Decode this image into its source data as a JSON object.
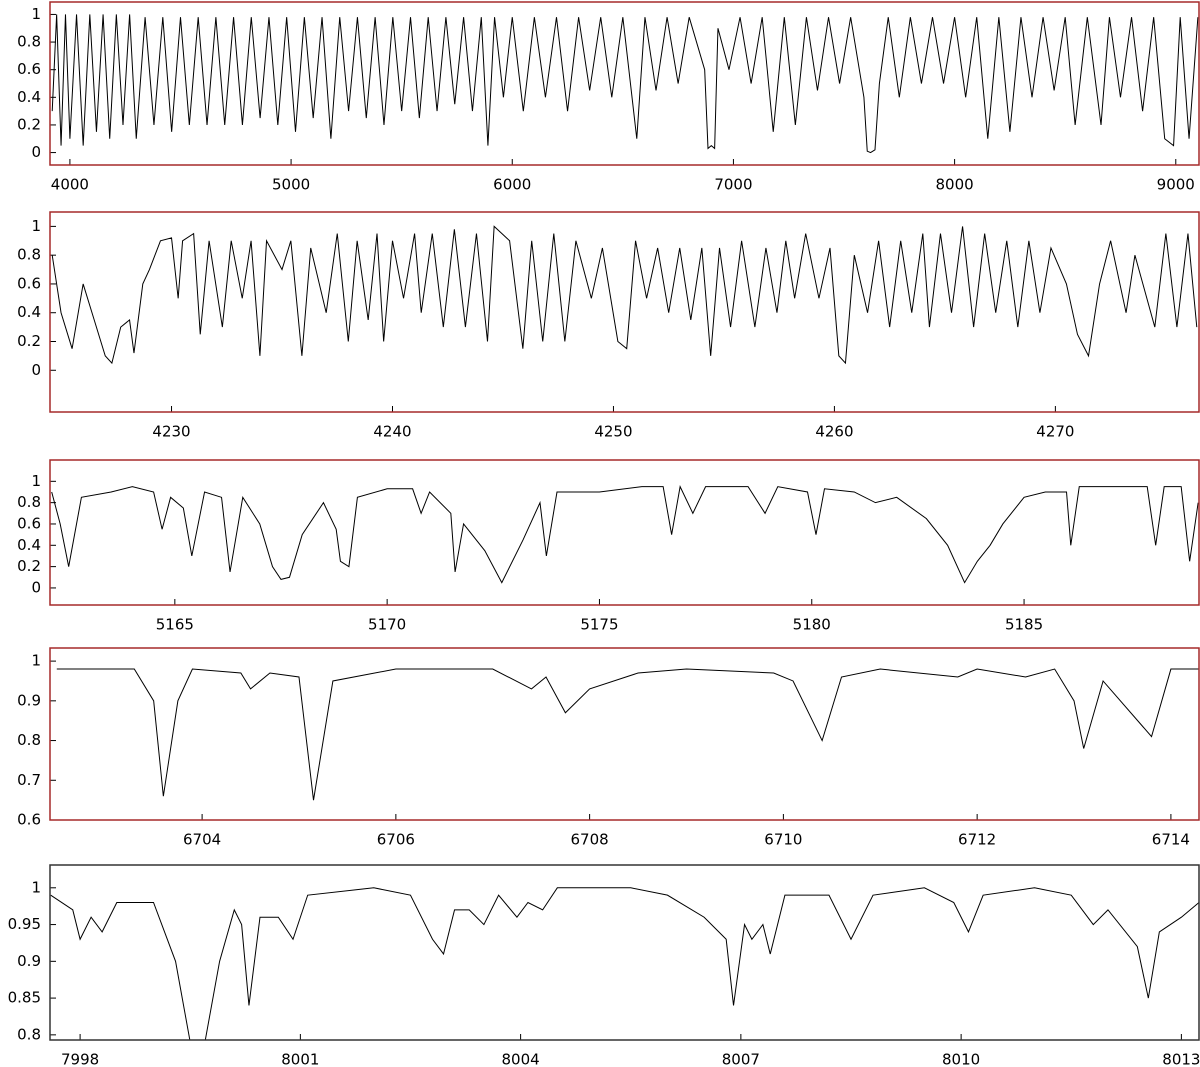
{
  "chart_data": [
    {
      "type": "line",
      "color": "#000000",
      "frame_color": "#a52a2a",
      "xlim": [
        3910,
        9105
      ],
      "ylim": [
        -0.09,
        1.09
      ],
      "xticks": [
        4000,
        5000,
        6000,
        7000,
        8000,
        9000
      ],
      "yticks": [
        0,
        0.2,
        0.4,
        0.6,
        0.8,
        1
      ],
      "x": [
        3920,
        3940,
        3960,
        3980,
        4000,
        4030,
        4060,
        4090,
        4120,
        4150,
        4180,
        4210,
        4240,
        4270,
        4300,
        4340,
        4380,
        4420,
        4460,
        4500,
        4540,
        4580,
        4620,
        4660,
        4700,
        4740,
        4780,
        4820,
        4860,
        4900,
        4940,
        4980,
        5020,
        5060,
        5100,
        5140,
        5180,
        5220,
        5260,
        5300,
        5340,
        5380,
        5420,
        5460,
        5500,
        5540,
        5580,
        5620,
        5660,
        5700,
        5740,
        5780,
        5820,
        5860,
        5890,
        5920,
        5960,
        6000,
        6050,
        6100,
        6150,
        6200,
        6250,
        6300,
        6350,
        6400,
        6450,
        6500,
        6563,
        6600,
        6650,
        6700,
        6750,
        6800,
        6870,
        6885,
        6900,
        6915,
        6930,
        6980,
        7030,
        7080,
        7130,
        7180,
        7230,
        7280,
        7330,
        7380,
        7430,
        7480,
        7530,
        7590,
        7605,
        7620,
        7640,
        7660,
        7700,
        7750,
        7800,
        7850,
        7900,
        7950,
        8000,
        8050,
        8100,
        8150,
        8200,
        8250,
        8300,
        8350,
        8400,
        8450,
        8500,
        8545,
        8600,
        8662,
        8700,
        8750,
        8800,
        8850,
        8900,
        8950,
        8990,
        9020,
        9060,
        9100
      ],
      "values": [
        0.3,
        1,
        0.05,
        1,
        0.1,
        1,
        0.05,
        1,
        0.15,
        1,
        0.1,
        1,
        0.2,
        1,
        0.1,
        0.98,
        0.2,
        0.98,
        0.15,
        0.98,
        0.2,
        0.98,
        0.2,
        0.98,
        0.2,
        0.98,
        0.2,
        0.98,
        0.25,
        0.98,
        0.2,
        0.98,
        0.15,
        0.98,
        0.25,
        0.98,
        0.1,
        0.98,
        0.3,
        0.98,
        0.25,
        0.98,
        0.2,
        0.98,
        0.3,
        0.98,
        0.25,
        0.98,
        0.3,
        0.98,
        0.35,
        0.98,
        0.3,
        0.98,
        0.05,
        0.98,
        0.4,
        0.98,
        0.3,
        0.98,
        0.4,
        0.98,
        0.3,
        0.98,
        0.45,
        0.98,
        0.4,
        0.98,
        0.1,
        0.98,
        0.45,
        0.98,
        0.5,
        0.98,
        0.6,
        0.03,
        0.05,
        0.03,
        0.9,
        0.6,
        0.98,
        0.5,
        0.98,
        0.15,
        0.98,
        0.2,
        0.98,
        0.45,
        0.98,
        0.5,
        0.98,
        0.4,
        0.01,
        0,
        0.02,
        0.5,
        0.98,
        0.4,
        0.98,
        0.5,
        0.98,
        0.5,
        0.98,
        0.4,
        0.98,
        0.1,
        0.98,
        0.15,
        0.98,
        0.4,
        0.98,
        0.45,
        0.98,
        0.2,
        0.98,
        0.2,
        0.98,
        0.4,
        0.98,
        0.3,
        0.98,
        0.1,
        0.05,
        0.98,
        0.1,
        0.98
      ]
    },
    {
      "type": "line",
      "color": "#000000",
      "frame_color": "#a52a2a",
      "xlim": [
        4224.5,
        4276.5
      ],
      "ylim": [
        -0.29,
        1.1
      ],
      "xticks": [
        4230,
        4240,
        4250,
        4260,
        4270
      ],
      "yticks": [
        0,
        0.2,
        0.4,
        0.6,
        0.8,
        1
      ],
      "x": [
        4224.6,
        4225,
        4225.5,
        4226,
        4226.5,
        4227,
        4227.3,
        4227.7,
        4228.1,
        4228.3,
        4228.7,
        4229,
        4229.5,
        4230,
        4230.3,
        4230.5,
        4231,
        4231.3,
        4231.7,
        4232.3,
        4232.7,
        4233.2,
        4233.6,
        4234,
        4234.3,
        4235,
        4235.4,
        4235.9,
        4236.3,
        4237,
        4237.5,
        4238,
        4238.4,
        4238.9,
        4239.3,
        4239.6,
        4240,
        4240.5,
        4241,
        4241.3,
        4241.8,
        4242.3,
        4242.8,
        4243.3,
        4243.8,
        4244.3,
        4244.6,
        4245.3,
        4245.9,
        4246.3,
        4246.8,
        4247.3,
        4247.8,
        4248.3,
        4249,
        4249.5,
        4250.2,
        4250.6,
        4251,
        4251.5,
        4252,
        4252.5,
        4253,
        4253.5,
        4254,
        4254.4,
        4254.8,
        4255.3,
        4255.8,
        4256.4,
        4256.9,
        4257.4,
        4257.8,
        4258.2,
        4258.7,
        4259.3,
        4259.8,
        4260.2,
        4260.5,
        4260.9,
        4261.5,
        4262,
        4262.5,
        4263,
        4263.5,
        4264,
        4264.3,
        4264.8,
        4265.3,
        4265.8,
        4266.3,
        4266.8,
        4267.3,
        4267.8,
        4268.3,
        4268.8,
        4269.3,
        4269.8,
        4270.5,
        4271,
        4271.5,
        4272,
        4272.5,
        4273.2,
        4273.6,
        4274.5,
        4275,
        4275.5,
        4276,
        4276.4
      ],
      "values": [
        0.8,
        0.4,
        0.15,
        0.6,
        0.35,
        0.1,
        0.05,
        0.3,
        0.35,
        0.12,
        0.6,
        0.7,
        0.9,
        0.92,
        0.5,
        0.9,
        0.95,
        0.25,
        0.9,
        0.3,
        0.9,
        0.5,
        0.9,
        0.1,
        0.9,
        0.7,
        0.9,
        0.1,
        0.85,
        0.4,
        0.95,
        0.2,
        0.9,
        0.35,
        0.95,
        0.2,
        0.9,
        0.5,
        0.95,
        0.4,
        0.95,
        0.3,
        0.98,
        0.3,
        0.95,
        0.2,
        1.0,
        0.9,
        0.15,
        0.9,
        0.2,
        0.95,
        0.2,
        0.9,
        0.5,
        0.85,
        0.2,
        0.15,
        0.9,
        0.5,
        0.85,
        0.4,
        0.85,
        0.35,
        0.85,
        0.1,
        0.85,
        0.3,
        0.9,
        0.3,
        0.85,
        0.4,
        0.9,
        0.5,
        0.95,
        0.5,
        0.85,
        0.1,
        0.05,
        0.8,
        0.4,
        0.9,
        0.3,
        0.9,
        0.4,
        0.95,
        0.3,
        0.95,
        0.4,
        1.0,
        0.3,
        0.95,
        0.4,
        0.9,
        0.3,
        0.9,
        0.4,
        0.85,
        0.6,
        0.25,
        0.1,
        0.6,
        0.9,
        0.4,
        0.8,
        0.3,
        0.95,
        0.3,
        0.95,
        0.3
      ]
    },
    {
      "type": "line",
      "color": "#000000",
      "frame_color": "#a52a2a",
      "xlim": [
        5162.06,
        5189.12
      ],
      "ylim": [
        -0.16,
        1.2
      ],
      "xticks": [
        5165,
        5170,
        5175,
        5180,
        5185
      ],
      "yticks": [
        0,
        0.2,
        0.4,
        0.6,
        0.8,
        1
      ],
      "x": [
        5162.1,
        5162.3,
        5162.5,
        5162.8,
        5163.5,
        5164,
        5164.5,
        5164.7,
        5164.9,
        5165.2,
        5165.4,
        5165.7,
        5166.1,
        5166.3,
        5166.6,
        5167,
        5167.3,
        5167.5,
        5167.7,
        5168,
        5168.5,
        5168.8,
        5168.9,
        5169.1,
        5169.3,
        5170,
        5170.6,
        5170.8,
        5171,
        5171.5,
        5171.6,
        5171.8,
        5172.3,
        5172.7,
        5173.2,
        5173.6,
        5173.75,
        5174,
        5175,
        5176,
        5176.5,
        5176.7,
        5176.9,
        5177.2,
        5177.5,
        5178.5,
        5178.9,
        5179.2,
        5179.9,
        5180.1,
        5180.3,
        5181,
        5181.5,
        5182,
        5182.7,
        5183.2,
        5183.6,
        5183.9,
        5184.2,
        5184.5,
        5185,
        5185.5,
        5186,
        5186.1,
        5186.3,
        5187,
        5187.9,
        5188.1,
        5188.3,
        5188.7,
        5188.9,
        5189.1
      ],
      "values": [
        0.9,
        0.6,
        0.2,
        0.85,
        0.9,
        0.95,
        0.9,
        0.55,
        0.85,
        0.75,
        0.3,
        0.9,
        0.85,
        0.15,
        0.85,
        0.6,
        0.2,
        0.08,
        0.1,
        0.5,
        0.8,
        0.55,
        0.25,
        0.2,
        0.85,
        0.93,
        0.93,
        0.7,
        0.9,
        0.7,
        0.15,
        0.6,
        0.35,
        0.05,
        0.45,
        0.8,
        0.3,
        0.9,
        0.9,
        0.95,
        0.95,
        0.5,
        0.95,
        0.7,
        0.95,
        0.95,
        0.7,
        0.95,
        0.9,
        0.5,
        0.93,
        0.9,
        0.8,
        0.85,
        0.65,
        0.4,
        0.05,
        0.25,
        0.4,
        0.6,
        0.85,
        0.9,
        0.9,
        0.4,
        0.95,
        0.95,
        0.95,
        0.4,
        0.95,
        0.95,
        0.25,
        0.8
      ]
    },
    {
      "type": "line",
      "color": "#000000",
      "frame_color": "#a52a2a",
      "xlim": [
        6702.43,
        6714.29
      ],
      "ylim": [
        0.6,
        1.033
      ],
      "xticks": [
        6704,
        6706,
        6708,
        6710,
        6712,
        6714
      ],
      "yticks": [
        0.6,
        0.7,
        0.8,
        0.9,
        1
      ],
      "x": [
        6702.5,
        6703.3,
        6703.5,
        6703.6,
        6703.75,
        6703.9,
        6704.4,
        6704.5,
        6704.7,
        6705,
        6705.15,
        6705.35,
        6706,
        6707,
        6707.4,
        6707.55,
        6707.75,
        6708,
        6708.5,
        6709,
        6709.9,
        6710.1,
        6710.4,
        6710.6,
        6711,
        6711.8,
        6712,
        6712.5,
        6712.8,
        6713,
        6713.1,
        6713.3,
        6713.8,
        6714,
        6714.29
      ],
      "values": [
        0.98,
        0.98,
        0.9,
        0.66,
        0.9,
        0.98,
        0.97,
        0.93,
        0.97,
        0.96,
        0.65,
        0.95,
        0.98,
        0.98,
        0.93,
        0.96,
        0.87,
        0.93,
        0.97,
        0.98,
        0.97,
        0.95,
        0.8,
        0.96,
        0.98,
        0.96,
        0.98,
        0.96,
        0.98,
        0.9,
        0.78,
        0.95,
        0.81,
        0.98,
        0.98
      ]
    },
    {
      "type": "line",
      "color": "#000000",
      "frame_color": "#333333",
      "xlim": [
        7997.59,
        8013.24
      ],
      "ylim": [
        0.793,
        1.031
      ],
      "xticks": [
        7998,
        8001,
        8004,
        8007,
        8010,
        8013
      ],
      "yticks": [
        0.8,
        0.85,
        0.9,
        0.95,
        1
      ],
      "x": [
        7997.6,
        7997.9,
        7998.0,
        7998.15,
        7998.3,
        7998.5,
        7999,
        7999.3,
        7999.5,
        7999.7,
        7999.9,
        8000.1,
        8000.2,
        8000.3,
        8000.45,
        8000.7,
        8000.9,
        8001.1,
        8002,
        8002.5,
        8002.8,
        8002.95,
        8003.1,
        8003.3,
        8003.5,
        8003.7,
        8003.95,
        8004.1,
        8004.3,
        8004.5,
        8005.5,
        8006,
        8006.5,
        8006.8,
        8006.9,
        8007.05,
        8007.15,
        8007.3,
        8007.4,
        8007.6,
        8008.2,
        8008.5,
        8008.8,
        8009.5,
        8009.9,
        8010.1,
        8010.3,
        8011,
        8011.5,
        8011.8,
        8012,
        8012.4,
        8012.55,
        8012.7,
        8013,
        8013.24
      ],
      "values": [
        0.99,
        0.97,
        0.93,
        0.96,
        0.94,
        0.98,
        0.98,
        0.9,
        0.79,
        0.79,
        0.9,
        0.97,
        0.95,
        0.84,
        0.96,
        0.96,
        0.93,
        0.99,
        1.0,
        0.99,
        0.93,
        0.91,
        0.97,
        0.97,
        0.95,
        0.99,
        0.96,
        0.98,
        0.97,
        1.0,
        1.0,
        0.99,
        0.96,
        0.93,
        0.84,
        0.95,
        0.93,
        0.95,
        0.91,
        0.99,
        0.99,
        0.93,
        0.99,
        1.0,
        0.98,
        0.94,
        0.99,
        1.0,
        0.99,
        0.95,
        0.97,
        0.92,
        0.85,
        0.94,
        0.96,
        0.98
      ]
    }
  ]
}
